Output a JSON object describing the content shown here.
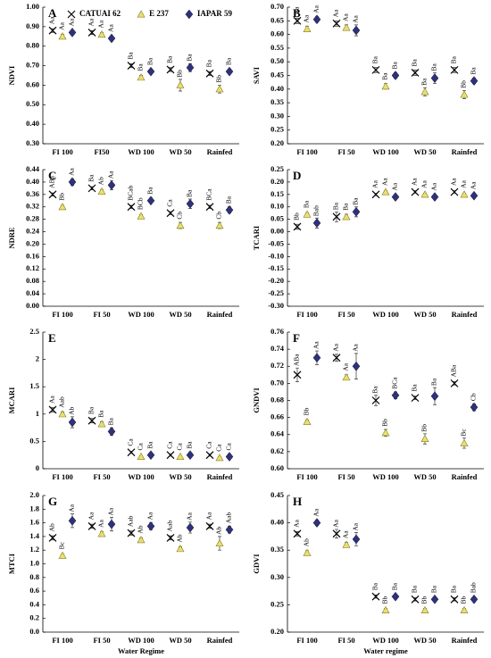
{
  "chart_data": [
    {
      "type": "dot",
      "panel": "A",
      "ylabel": "NDVI",
      "categories": [
        "FI 100",
        "FI50",
        "WD 100",
        "WD 50",
        "Rainfed"
      ],
      "ylim": [
        0.3,
        1.0
      ],
      "yticks": [
        {
          "value": 0.3,
          "label": "0.30"
        },
        {
          "value": 0.4,
          "label": "0.40"
        },
        {
          "value": 0.5,
          "label": "0.50"
        },
        {
          "value": 0.6,
          "label": "0.60"
        },
        {
          "value": 0.7,
          "label": "0.70"
        },
        {
          "value": 0.8,
          "label": "0.80"
        },
        {
          "value": 0.9,
          "label": "0.90"
        },
        {
          "value": 1.0,
          "label": "1.00"
        }
      ],
      "legend": "top",
      "series": [
        {
          "name": "CATUAI 62",
          "marker": "x",
          "color": "#000000",
          "values": [
            0.88,
            0.87,
            0.7,
            0.68,
            0.66
          ],
          "errors": [
            0.01,
            0.01,
            0.01,
            0.01,
            0.01
          ],
          "letters": [
            "Aa",
            "Aa",
            "Ba",
            "Ba",
            "Ba"
          ]
        },
        {
          "name": "E 237",
          "marker": "triangle",
          "color": "#e8e070",
          "values": [
            0.85,
            0.86,
            0.64,
            0.6,
            0.58
          ],
          "errors": [
            0.01,
            0.01,
            0.01,
            0.03,
            0.02
          ],
          "letters": [
            "Aa",
            "Aa",
            "Ba",
            "Bb",
            "Bb"
          ]
        },
        {
          "name": "IAPAR 59",
          "marker": "diamond",
          "color": "#2e3180",
          "values": [
            0.87,
            0.84,
            0.67,
            0.69,
            0.67
          ],
          "errors": [
            0.01,
            0.01,
            0.01,
            0.02,
            0.01
          ],
          "letters": [
            "Aa",
            "Aa",
            "Ba",
            "Ba",
            "Ba"
          ]
        }
      ]
    },
    {
      "type": "dot",
      "panel": "B",
      "ylabel": "SAVI",
      "categories": [
        "FI 100",
        "FI 50",
        "WD 100",
        "WD 50",
        "Rainfed"
      ],
      "ylim": [
        0.2,
        0.7
      ],
      "yticks": [
        {
          "value": 0.2,
          "label": "0.20"
        },
        {
          "value": 0.25,
          "label": "0.25"
        },
        {
          "value": 0.3,
          "label": "0.30"
        },
        {
          "value": 0.35,
          "label": "0.35"
        },
        {
          "value": 0.4,
          "label": "0.40"
        },
        {
          "value": 0.45,
          "label": "0.45"
        },
        {
          "value": 0.5,
          "label": "0.50"
        },
        {
          "value": 0.55,
          "label": "0.55"
        },
        {
          "value": 0.6,
          "label": "0.60"
        },
        {
          "value": 0.65,
          "label": "0.65"
        },
        {
          "value": 0.7,
          "label": "0.70"
        }
      ],
      "series": [
        {
          "marker": "x",
          "color": "#000000",
          "values": [
            0.65,
            0.64,
            0.47,
            0.46,
            0.47
          ],
          "errors": [
            0.01,
            0.01,
            0.01,
            0.01,
            0.01
          ],
          "letters": [
            "Aa",
            "Aa",
            "Ba",
            "Ba",
            "Ba"
          ]
        },
        {
          "marker": "triangle",
          "color": "#e8e070",
          "values": [
            0.62,
            0.625,
            0.41,
            0.39,
            0.38
          ],
          "errors": [
            0.01,
            0.01,
            0.01,
            0.015,
            0.015
          ],
          "letters": [
            "Aa",
            "Aa",
            "Ba",
            "Ba",
            "Bb"
          ]
        },
        {
          "marker": "diamond",
          "color": "#2e3180",
          "values": [
            0.655,
            0.615,
            0.45,
            0.44,
            0.43
          ],
          "errors": [
            0.01,
            0.02,
            0.01,
            0.02,
            0.01
          ],
          "letters": [
            "Aa",
            "Aa",
            "Ba",
            "Ba",
            "Ba"
          ]
        }
      ]
    },
    {
      "type": "dot",
      "panel": "C",
      "ylabel": "NDRE",
      "categories": [
        "FI 100",
        "FI 50",
        "WD 100",
        "WD 50",
        "Rainfed"
      ],
      "ylim": [
        0,
        0.44
      ],
      "yticks": [
        {
          "value": 0,
          "label": "0.00"
        },
        {
          "value": 0.04,
          "label": "0.04"
        },
        {
          "value": 0.08,
          "label": "0.08"
        },
        {
          "value": 0.12,
          "label": "0.12"
        },
        {
          "value": 0.16,
          "label": "0.16"
        },
        {
          "value": 0.2,
          "label": "0.20"
        },
        {
          "value": 0.24,
          "label": "0.24"
        },
        {
          "value": 0.28,
          "label": "0.28"
        },
        {
          "value": 0.32,
          "label": "0.32"
        },
        {
          "value": 0.36,
          "label": "0.36"
        },
        {
          "value": 0.4,
          "label": "0.40"
        },
        {
          "value": 0.44,
          "label": "0.44"
        }
      ],
      "series": [
        {
          "marker": "x",
          "color": "#000000",
          "values": [
            0.36,
            0.38,
            0.32,
            0.3,
            0.32
          ],
          "errors": [
            0.005,
            0.005,
            0.005,
            0.005,
            0.005
          ],
          "letters": [
            "ABa",
            "Ba",
            "BCab",
            "Ca",
            "BCa"
          ]
        },
        {
          "marker": "triangle",
          "color": "#e8e070",
          "values": [
            0.32,
            0.37,
            0.29,
            0.26,
            0.26
          ],
          "errors": [
            0.005,
            0.005,
            0.005,
            0.01,
            0.01
          ],
          "letters": [
            "Bb",
            "Ab",
            "BCb",
            "Cb",
            "Cb"
          ]
        },
        {
          "marker": "diamond",
          "color": "#2e3180",
          "values": [
            0.4,
            0.39,
            0.34,
            0.33,
            0.31
          ],
          "errors": [
            0.01,
            0.015,
            0.005,
            0.015,
            0.01
          ],
          "letters": [
            "Aa",
            "Aa",
            "Ba",
            "Ba",
            "Ba"
          ]
        }
      ]
    },
    {
      "type": "dot",
      "panel": "D",
      "ylabel": "TCARI",
      "categories": [
        "FI 100",
        "FI 50",
        "WD 100",
        "WD 50",
        "Rainfed"
      ],
      "ylim": [
        -0.3,
        0.25
      ],
      "yticks": [
        {
          "value": -0.3,
          "label": "-0.30"
        },
        {
          "value": -0.25,
          "label": "-0.25"
        },
        {
          "value": -0.2,
          "label": "-0.20"
        },
        {
          "value": -0.15,
          "label": "-0.15"
        },
        {
          "value": -0.1,
          "label": "-0.10"
        },
        {
          "value": -0.05,
          "label": "-0.05"
        },
        {
          "value": 0,
          "label": "0.00"
        },
        {
          "value": 0.05,
          "label": "0.05"
        },
        {
          "value": 0.1,
          "label": "0.10"
        },
        {
          "value": 0.15,
          "label": "0.15"
        },
        {
          "value": 0.2,
          "label": "0.20"
        },
        {
          "value": 0.25,
          "label": "0.25"
        }
      ],
      "series": [
        {
          "marker": "x",
          "color": "#000000",
          "values": [
            0.02,
            0.06,
            0.15,
            0.16,
            0.16
          ],
          "errors": [
            0.01,
            0.02,
            0.005,
            0.005,
            0.005
          ],
          "letters": [
            "Bb",
            "Ba",
            "Aa",
            "Aa",
            "Aa"
          ]
        },
        {
          "marker": "triangle",
          "color": "#e8e070",
          "values": [
            0.07,
            0.06,
            0.16,
            0.15,
            0.15
          ],
          "errors": [
            0.005,
            0.01,
            0.005,
            0.005,
            0.005
          ],
          "letters": [
            "Ba",
            "Ba",
            "Aa",
            "Aa",
            "Aa"
          ]
        },
        {
          "marker": "diamond",
          "color": "#2e3180",
          "values": [
            0.035,
            0.08,
            0.14,
            0.14,
            0.145
          ],
          "errors": [
            0.02,
            0.02,
            0.005,
            0.005,
            0.005
          ],
          "letters": [
            "Bab",
            "Ba",
            "Aa",
            "Aa",
            "Aa"
          ]
        }
      ]
    },
    {
      "type": "dot",
      "panel": "E",
      "ylabel": "MCARI",
      "categories": [
        "FI 100",
        "FI 50",
        "WD 100",
        "WD 50",
        "Rainfed"
      ],
      "ylim": [
        0,
        2.5
      ],
      "yticks": [
        0,
        0.5,
        1,
        1.5,
        2,
        2.5
      ],
      "series": [
        {
          "marker": "x",
          "color": "#000000",
          "values": [
            1.08,
            0.88,
            0.3,
            0.25,
            0.25
          ],
          "errors": [
            0.04,
            0.04,
            0.02,
            0.02,
            0.02
          ],
          "letters": [
            "Aa",
            "Ba",
            "Ca",
            "Ca",
            "Ca"
          ]
        },
        {
          "marker": "triangle",
          "color": "#e8e070",
          "values": [
            1.0,
            0.82,
            0.22,
            0.22,
            0.2
          ],
          "errors": [
            0.04,
            0.04,
            0.02,
            0.02,
            0.02
          ],
          "letters": [
            "Aab",
            "Ba",
            "Ca",
            "Ca",
            "Ca"
          ]
        },
        {
          "marker": "diamond",
          "color": "#2e3180",
          "values": [
            0.85,
            0.68,
            0.25,
            0.25,
            0.22
          ],
          "errors": [
            0.1,
            0.07,
            0.02,
            0.02,
            0.02
          ],
          "letters": [
            "Ab",
            "Ba",
            "Ba",
            "Ba",
            "Ca"
          ]
        }
      ]
    },
    {
      "type": "dot",
      "panel": "F",
      "ylabel": "GNDVI",
      "categories": [
        "FI 100",
        "FI 50",
        "WD 100",
        "WD 50",
        "Rainfed"
      ],
      "ylim": [
        0.6,
        0.76
      ],
      "yticks": [
        {
          "value": 0.6,
          "label": "0.60"
        },
        {
          "value": 0.62,
          "label": "0.62"
        },
        {
          "value": 0.64,
          "label": "0.64"
        },
        {
          "value": 0.66,
          "label": "0.66"
        },
        {
          "value": 0.68,
          "label": "0.68"
        },
        {
          "value": 0.7,
          "label": "0.70"
        },
        {
          "value": 0.72,
          "label": "0.72"
        },
        {
          "value": 0.74,
          "label": "0.74"
        },
        {
          "value": 0.76,
          "label": "0.76"
        }
      ],
      "series": [
        {
          "marker": "x",
          "color": "#000000",
          "values": [
            0.71,
            0.73,
            0.68,
            0.683,
            0.7
          ],
          "errors": [
            0.008,
            0.004,
            0.006,
            0.002,
            0.002
          ],
          "letters": [
            "ABa",
            "Aa",
            "Ba",
            "Ba",
            "ABa"
          ]
        },
        {
          "marker": "triangle",
          "color": "#e8e070",
          "values": [
            0.655,
            0.707,
            0.642,
            0.635,
            0.63
          ],
          "errors": [
            0.002,
            0.003,
            0.004,
            0.006,
            0.006
          ],
          "letters": [
            "Bb",
            "Aa",
            "Bb",
            "Bb",
            "Bc"
          ]
        },
        {
          "marker": "diamond",
          "color": "#2e3180",
          "values": [
            0.73,
            0.72,
            0.686,
            0.685,
            0.672
          ],
          "errors": [
            0.008,
            0.015,
            0.004,
            0.01,
            0.004
          ],
          "letters": [
            "Aa",
            "Aa",
            "BCa",
            "Ba",
            "Cb"
          ]
        }
      ]
    },
    {
      "type": "dot",
      "panel": "G",
      "ylabel": "MTCI",
      "xlabel": "Water Regime",
      "categories": [
        "FI 100",
        "FI 50",
        "WD 100",
        "WD 50",
        "Rainfed"
      ],
      "ylim": [
        0,
        2.0
      ],
      "yticks": [
        {
          "value": 0,
          "label": "0.0"
        },
        {
          "value": 0.2,
          "label": "0.2"
        },
        {
          "value": 0.4,
          "label": "0.4"
        },
        {
          "value": 0.6,
          "label": "0.6"
        },
        {
          "value": 0.8,
          "label": "0.8"
        },
        {
          "value": 1.0,
          "label": "1.0"
        },
        {
          "value": 1.2,
          "label": "1.2"
        },
        {
          "value": 1.4,
          "label": "1.4"
        },
        {
          "value": 1.6,
          "label": "1.6"
        },
        {
          "value": 1.8,
          "label": "1.8"
        },
        {
          "value": 2.0,
          "label": "2.0"
        }
      ],
      "series": [
        {
          "marker": "x",
          "color": "#000000",
          "values": [
            1.38,
            1.55,
            1.45,
            1.38,
            1.55
          ],
          "errors": [
            0.03,
            0.03,
            0.03,
            0.03,
            0.03
          ],
          "letters": [
            "Ab",
            "Aa",
            "Aab",
            "Aab",
            "Aa"
          ]
        },
        {
          "marker": "triangle",
          "color": "#e8e070",
          "values": [
            1.12,
            1.44,
            1.35,
            1.22,
            1.3
          ],
          "errors": [
            0.02,
            0.03,
            0.03,
            0.03,
            0.1
          ],
          "letters": [
            "Bc",
            "Aa",
            "Ab",
            "Ab",
            "Ab"
          ]
        },
        {
          "marker": "diamond",
          "color": "#2e3180",
          "values": [
            1.63,
            1.58,
            1.55,
            1.53,
            1.5
          ],
          "errors": [
            0.1,
            0.1,
            0.05,
            0.08,
            0.05
          ],
          "letters": [
            "Aa",
            "Aa",
            "Aa",
            "Aa",
            "Aab"
          ]
        }
      ]
    },
    {
      "type": "dot",
      "panel": "H",
      "ylabel": "GDVI",
      "xlabel": "Water regime",
      "categories": [
        "FI 100",
        "FI 50",
        "WD 100",
        "WD 50",
        "Rainfed"
      ],
      "ylim": [
        0.2,
        0.45
      ],
      "yticks": [
        {
          "value": 0.2,
          "label": "0.20"
        },
        {
          "value": 0.25,
          "label": "0.25"
        },
        {
          "value": 0.3,
          "label": "0.30"
        },
        {
          "value": 0.35,
          "label": "0.35"
        },
        {
          "value": 0.4,
          "label": "0.40"
        },
        {
          "value": 0.45,
          "label": "0.45"
        }
      ],
      "series": [
        {
          "marker": "x",
          "color": "#000000",
          "values": [
            0.38,
            0.38,
            0.265,
            0.26,
            0.26
          ],
          "errors": [
            0.004,
            0.008,
            0.003,
            0.003,
            0.003
          ],
          "letters": [
            "Aa",
            "Aa",
            "Ba",
            "Ba",
            "Ba"
          ]
        },
        {
          "marker": "triangle",
          "color": "#e8e070",
          "values": [
            0.345,
            0.36,
            0.24,
            0.24,
            0.24
          ],
          "errors": [
            0.004,
            0.004,
            0.003,
            0.003,
            0.003
          ],
          "letters": [
            "Ab",
            "Aa",
            "Bb",
            "Bb",
            "Bb"
          ]
        },
        {
          "marker": "diamond",
          "color": "#2e3180",
          "values": [
            0.4,
            0.37,
            0.265,
            0.26,
            0.26
          ],
          "errors": [
            0.005,
            0.012,
            0.003,
            0.003,
            0.003
          ],
          "letters": [
            "Aa",
            "Aa",
            "Ba",
            "Ba",
            "Bab"
          ]
        }
      ]
    }
  ]
}
